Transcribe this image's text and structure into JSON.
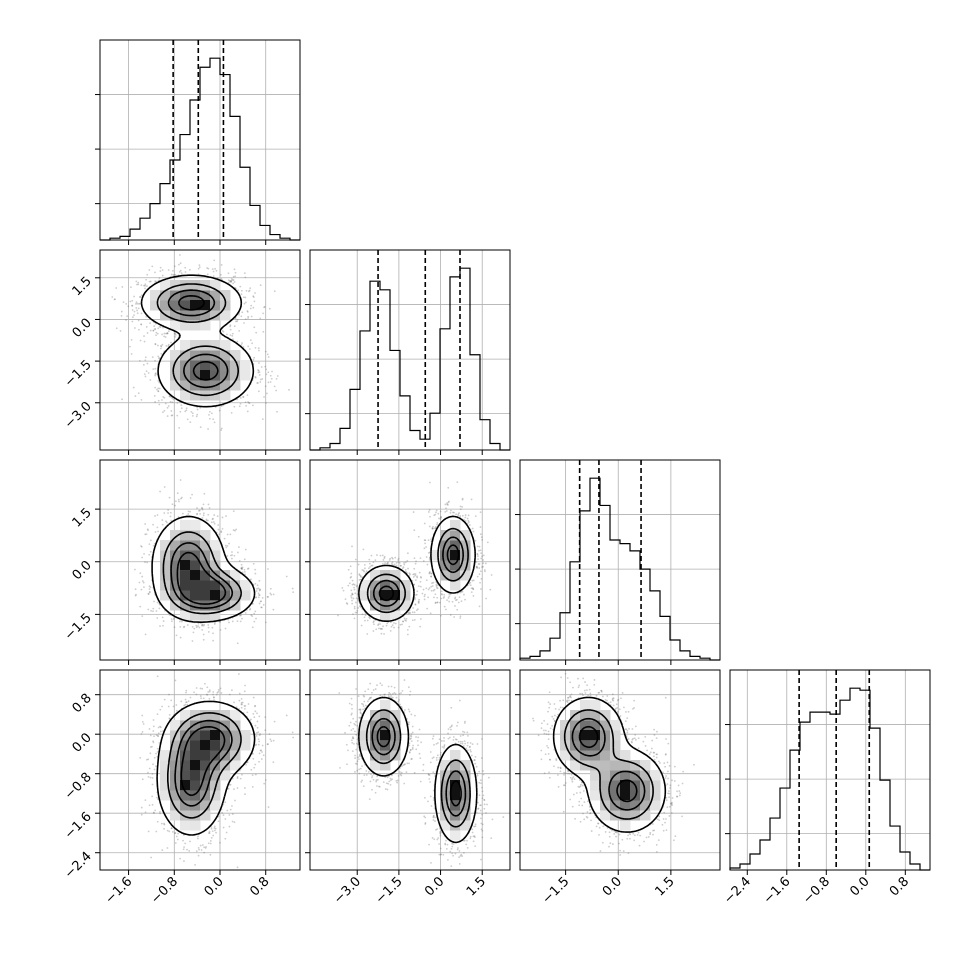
{
  "chart_data": {
    "type": "corner",
    "title": "",
    "dimensions": 4,
    "grid": true,
    "parameters": [
      {
        "index": 0,
        "range": [
          -2.1,
          1.4
        ],
        "ticks": [
          -1.6,
          -0.8,
          0.0,
          0.8
        ],
        "tick_labels": [
          "−1.6",
          "−0.8",
          "0.0",
          "0.8"
        ],
        "quantiles": [
          -0.82,
          -0.38,
          0.06
        ],
        "histogram": {
          "edges": [
            -2.1,
            -1.925,
            -1.75,
            -1.575,
            -1.4,
            -1.225,
            -1.05,
            -0.875,
            -0.7,
            -0.525,
            -0.35,
            -0.175,
            0.0,
            0.175,
            0.35,
            0.525,
            0.7,
            0.875,
            1.05,
            1.225,
            1.4
          ],
          "counts": [
            0,
            1,
            2,
            6,
            12,
            20,
            31,
            44,
            58,
            77,
            95,
            100,
            91,
            68,
            40,
            19,
            8,
            3,
            1,
            0
          ]
        }
      },
      {
        "index": 1,
        "range": [
          -4.7,
          2.5
        ],
        "ticks": [
          -3.0,
          -1.5,
          0.0,
          1.5
        ],
        "tick_labels": [
          "−3.0",
          "−1.5",
          "0.0",
          "1.5"
        ],
        "quantiles": [
          -2.25,
          -0.55,
          0.7
        ],
        "histogram": {
          "edges": [
            -4.7,
            -4.34,
            -3.98,
            -3.62,
            -3.26,
            -2.9,
            -2.54,
            -2.18,
            -1.82,
            -1.46,
            -1.1,
            -0.74,
            -0.38,
            -0.02,
            0.34,
            0.7,
            1.06,
            1.42,
            1.78,
            2.14,
            2.5
          ],
          "counts": [
            0,
            1,
            3,
            10,
            28,
            55,
            78,
            74,
            46,
            25,
            9,
            5,
            17,
            56,
            80,
            84,
            44,
            14,
            3,
            0
          ]
        }
      },
      {
        "index": 2,
        "range": [
          -2.8,
          2.9
        ],
        "ticks": [
          -1.5,
          0.0,
          1.5
        ],
        "tick_labels": [
          "−1.5",
          "0.0",
          "1.5"
        ],
        "quantiles": [
          -1.1,
          -0.55,
          0.65
        ],
        "histogram": {
          "edges": [
            -2.8,
            -2.515,
            -2.23,
            -1.945,
            -1.66,
            -1.375,
            -1.09,
            -0.805,
            -0.52,
            -0.235,
            0.05,
            0.335,
            0.62,
            0.905,
            1.19,
            1.475,
            1.76,
            2.045,
            2.33,
            2.615,
            2.9
          ],
          "counts": [
            1,
            2,
            5,
            12,
            26,
            54,
            82,
            100,
            85,
            66,
            64,
            60,
            50,
            38,
            24,
            11,
            5,
            2,
            1,
            0
          ]
        }
      },
      {
        "index": 3,
        "range": [
          -2.75,
          1.3
        ],
        "ticks": [
          -2.4,
          -1.6,
          -0.8,
          0.0,
          0.8
        ],
        "tick_labels": [
          "−2.4",
          "−1.6",
          "−0.8",
          "0.0",
          "0.8"
        ],
        "quantiles": [
          -1.35,
          -0.6,
          0.07
        ],
        "histogram": {
          "edges": [
            -2.75,
            -2.5475,
            -2.345,
            -2.1425,
            -1.94,
            -1.7375,
            -1.535,
            -1.3325,
            -1.13,
            -0.9275,
            -0.725,
            -0.5225,
            -0.32,
            -0.1175,
            0.085,
            0.2875,
            0.49,
            0.6925,
            0.895,
            1.0975,
            1.3
          ],
          "counts": [
            1,
            3,
            8,
            15,
            26,
            41,
            60,
            74,
            79,
            79,
            78,
            85,
            91,
            90,
            71,
            45,
            22,
            9,
            3,
            0
          ]
        }
      }
    ],
    "pairs": [
      {
        "row": 1,
        "col": 0,
        "blobs": [
          {
            "mx": -0.5,
            "my": 0.6,
            "sx": 0.44,
            "sy": 0.5,
            "w": 0.5,
            "dark": [
              [
                -0.5,
                0.6
              ],
              [
                -0.3,
                0.6
              ]
            ]
          },
          {
            "mx": -0.25,
            "my": -1.85,
            "sx": 0.42,
            "sy": 0.65,
            "w": 0.5,
            "dark": [
              [
                -0.25,
                -1.85
              ],
              [
                -0.25,
                -2.0
              ]
            ]
          }
        ]
      },
      {
        "row": 2,
        "col": 0,
        "blobs": [
          {
            "mx": -0.55,
            "my": -0.1,
            "sx": 0.32,
            "sy": 0.7,
            "w": 0.5,
            "dark": [
              [
                -0.55,
                0.0
              ],
              [
                -0.45,
                -0.3
              ]
            ]
          },
          {
            "mx": -0.15,
            "my": -0.9,
            "sx": 0.38,
            "sy": 0.38,
            "w": 0.5,
            "dark": [
              [
                -0.15,
                -0.85
              ],
              [
                -0.1,
                -0.9
              ]
            ]
          }
        ]
      },
      {
        "row": 2,
        "col": 1,
        "blobs": [
          {
            "mx": -1.95,
            "my": -0.9,
            "sx": 0.5,
            "sy": 0.4,
            "w": 0.5,
            "dark": [
              [
                -1.95,
                -0.85
              ],
              [
                -1.8,
                -0.85
              ]
            ]
          },
          {
            "mx": 0.45,
            "my": 0.2,
            "sx": 0.4,
            "sy": 0.55,
            "w": 0.5,
            "dark": [
              [
                0.45,
                0.3
              ],
              [
                0.5,
                0.1
              ]
            ]
          }
        ]
      },
      {
        "row": 3,
        "col": 0,
        "blobs": [
          {
            "mx": -0.5,
            "my": -0.95,
            "sx": 0.3,
            "sy": 0.55,
            "w": 0.5,
            "dark": [
              [
                -0.55,
                -0.95
              ],
              [
                -0.5,
                -0.6
              ]
            ]
          },
          {
            "mx": -0.15,
            "my": -0.1,
            "sx": 0.38,
            "sy": 0.38,
            "w": 0.5,
            "dark": [
              [
                -0.15,
                -0.1
              ],
              [
                -0.25,
                -0.15
              ]
            ]
          }
        ]
      },
      {
        "row": 3,
        "col": 1,
        "blobs": [
          {
            "mx": -2.05,
            "my": -0.05,
            "sx": 0.45,
            "sy": 0.4,
            "w": 0.5,
            "dark": [
              [
                -2.05,
                -0.05
              ],
              [
                -2.0,
                0.0
              ]
            ]
          },
          {
            "mx": 0.55,
            "my": -1.2,
            "sx": 0.38,
            "sy": 0.5,
            "w": 0.5,
            "dark": [
              [
                0.55,
                -1.2
              ],
              [
                0.5,
                -1.1
              ]
            ]
          }
        ]
      },
      {
        "row": 3,
        "col": 2,
        "blobs": [
          {
            "mx": -0.85,
            "my": -0.05,
            "sx": 0.5,
            "sy": 0.4,
            "w": 0.5,
            "dark": [
              [
                -0.75,
                0.0
              ],
              [
                -0.9,
                -0.1
              ]
            ]
          },
          {
            "mx": 0.25,
            "my": -1.15,
            "sx": 0.55,
            "sy": 0.42,
            "w": 0.5,
            "dark": [
              [
                0.3,
                -1.1
              ],
              [
                0.2,
                -1.15
              ]
            ]
          }
        ]
      }
    ]
  }
}
